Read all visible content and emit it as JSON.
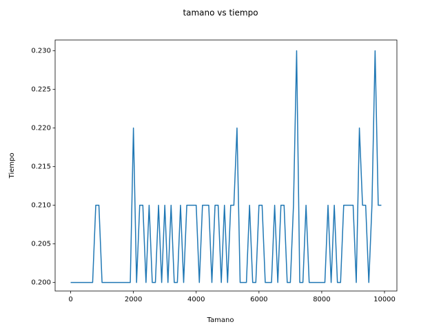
{
  "chart_data": {
    "type": "line",
    "title": "tamano vs tiempo",
    "xlabel": "Tamano",
    "ylabel": "Tiempo",
    "color": "#1f77b4",
    "x": [
      0,
      100,
      200,
      300,
      400,
      500,
      600,
      700,
      800,
      900,
      1000,
      1100,
      1200,
      1300,
      1400,
      1500,
      1600,
      1700,
      1800,
      1900,
      2000,
      2100,
      2200,
      2300,
      2400,
      2500,
      2600,
      2700,
      2800,
      2900,
      3000,
      3100,
      3200,
      3300,
      3400,
      3500,
      3600,
      3700,
      3800,
      3900,
      4000,
      4100,
      4200,
      4300,
      4400,
      4500,
      4600,
      4700,
      4800,
      4900,
      5000,
      5100,
      5200,
      5300,
      5400,
      5500,
      5600,
      5700,
      5800,
      5900,
      6000,
      6100,
      6200,
      6300,
      6400,
      6500,
      6600,
      6700,
      6800,
      6900,
      7000,
      7100,
      7200,
      7300,
      7400,
      7500,
      7600,
      7700,
      7800,
      7900,
      8000,
      8100,
      8200,
      8300,
      8400,
      8500,
      8600,
      8700,
      8800,
      8900,
      9000,
      9100,
      9200,
      9300,
      9400,
      9500,
      9600,
      9700,
      9800,
      9900
    ],
    "values": [
      0.2,
      0.2,
      0.2,
      0.2,
      0.2,
      0.2,
      0.2,
      0.2,
      0.21,
      0.21,
      0.2,
      0.2,
      0.2,
      0.2,
      0.2,
      0.2,
      0.2,
      0.2,
      0.2,
      0.2,
      0.22,
      0.2,
      0.21,
      0.21,
      0.2,
      0.21,
      0.2,
      0.2,
      0.21,
      0.2,
      0.21,
      0.2,
      0.21,
      0.2,
      0.2,
      0.21,
      0.2,
      0.21,
      0.21,
      0.21,
      0.21,
      0.2,
      0.21,
      0.21,
      0.21,
      0.2,
      0.21,
      0.21,
      0.2,
      0.21,
      0.2,
      0.21,
      0.21,
      0.22,
      0.2,
      0.2,
      0.2,
      0.21,
      0.2,
      0.2,
      0.21,
      0.21,
      0.2,
      0.2,
      0.2,
      0.21,
      0.2,
      0.21,
      0.21,
      0.2,
      0.2,
      0.21,
      0.23,
      0.2,
      0.2,
      0.21,
      0.2,
      0.2,
      0.2,
      0.2,
      0.2,
      0.2,
      0.21,
      0.2,
      0.21,
      0.2,
      0.2,
      0.21,
      0.21,
      0.21,
      0.21,
      0.2,
      0.22,
      0.21,
      0.21,
      0.2,
      0.21,
      0.23,
      0.21,
      0.21
    ],
    "xlim": [
      -495,
      10395
    ],
    "xticks": [
      0,
      2000,
      4000,
      6000,
      8000,
      10000
    ],
    "ylim": [
      0.1989,
      0.2314
    ],
    "yticks": [
      {
        "value": 0.2,
        "label": "0.200"
      },
      {
        "value": 0.205,
        "label": "0.205"
      },
      {
        "value": 0.21,
        "label": "0.210"
      },
      {
        "value": 0.215,
        "label": "0.215"
      },
      {
        "value": 0.22,
        "label": "0.220"
      },
      {
        "value": 0.225,
        "label": "0.225"
      },
      {
        "value": 0.23,
        "label": "0.230"
      }
    ]
  }
}
